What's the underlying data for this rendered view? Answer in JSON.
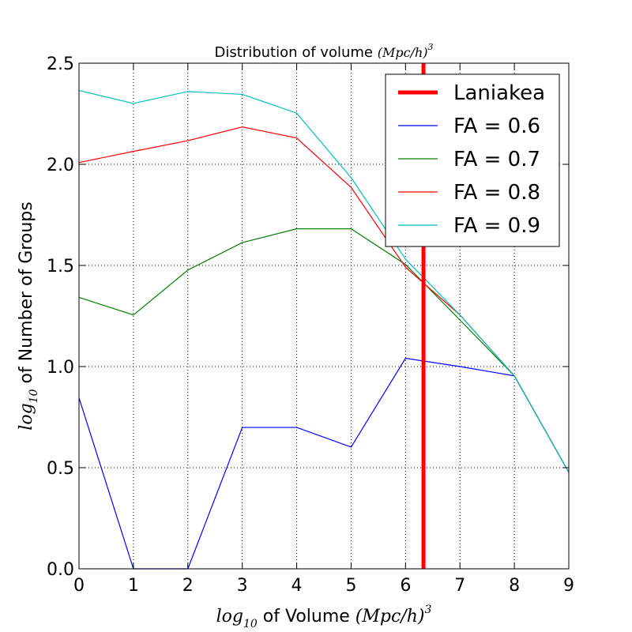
{
  "chart_data": {
    "type": "line",
    "title": {
      "text": "Distribution of volume ",
      "math": "(Mpc/h)",
      "sup": "3"
    },
    "xlabel": {
      "math_prefix": "log",
      "math_sub": "10",
      "text": " of Volume ",
      "math": "(Mpc/h)",
      "sup": "3"
    },
    "ylabel": {
      "math_prefix": "log",
      "math_sub": "10",
      "text": " of Number of Groups"
    },
    "xlim": [
      0,
      9
    ],
    "ylim": [
      0,
      2.5
    ],
    "xticks": [
      "0",
      "1",
      "2",
      "3",
      "4",
      "5",
      "6",
      "7",
      "8",
      "9"
    ],
    "yticks": [
      "0.0",
      "0.5",
      "1.0",
      "1.5",
      "2.0",
      "2.5"
    ],
    "grid": true,
    "legend_position": "top-right",
    "x": [
      0,
      1,
      2,
      3,
      4,
      5,
      6,
      7,
      8,
      9
    ],
    "series": [
      {
        "name": "FA = 0.6",
        "color": "#0000ff",
        "values": [
          0.845,
          0.0,
          0.0,
          0.699,
          0.699,
          0.602,
          1.041,
          1.0,
          0.954,
          0.477
        ]
      },
      {
        "name": "FA = 0.7",
        "color": "#008000",
        "values": [
          1.342,
          1.255,
          1.477,
          1.613,
          1.681,
          1.681,
          1.505,
          1.23,
          0.954,
          0.477
        ]
      },
      {
        "name": "FA = 0.8",
        "color": "#ff0000",
        "values": [
          2.009,
          2.064,
          2.117,
          2.185,
          2.13,
          1.886,
          1.491,
          1.255,
          0.954,
          0.477
        ]
      },
      {
        "name": "FA = 0.9",
        "color": "#00bfbf",
        "values": [
          2.365,
          2.301,
          2.36,
          2.346,
          2.253,
          1.934,
          1.531,
          1.255,
          0.954,
          0.477
        ]
      }
    ],
    "reference_line": {
      "name": "Laniakea",
      "color": "#ff0000",
      "x": 6.33
    }
  }
}
